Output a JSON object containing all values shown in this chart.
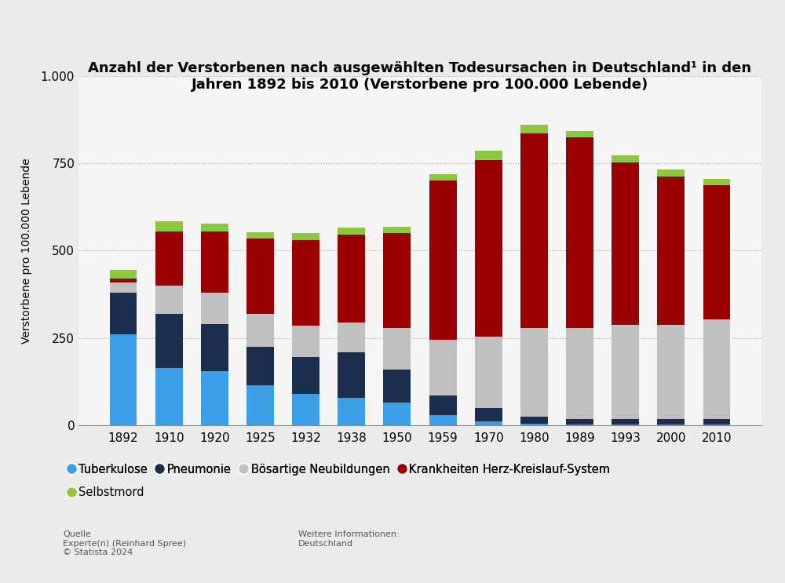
{
  "years": [
    "1892",
    "1910",
    "1920",
    "1925",
    "1932",
    "1938",
    "1950",
    "1959",
    "1970",
    "1980",
    "1989",
    "1993",
    "2000",
    "2010"
  ],
  "tuberkulose": [
    260,
    165,
    155,
    115,
    90,
    80,
    65,
    30,
    12,
    5,
    3,
    3,
    3,
    3
  ],
  "pneumonie": [
    120,
    155,
    135,
    110,
    105,
    130,
    95,
    55,
    38,
    20,
    15,
    15,
    15,
    15
  ],
  "bosartige": [
    30,
    80,
    90,
    95,
    90,
    85,
    120,
    160,
    205,
    255,
    260,
    270,
    270,
    285
  ],
  "herz_kreislauf": [
    10,
    155,
    175,
    215,
    245,
    250,
    270,
    455,
    505,
    555,
    545,
    465,
    425,
    385
  ],
  "selbstmord": [
    25,
    30,
    22,
    18,
    20,
    22,
    18,
    18,
    25,
    25,
    20,
    20,
    20,
    18
  ],
  "colors": {
    "tuberkulose": "#3B9FE7",
    "pneumonie": "#1B2E4E",
    "bosartige": "#C0C0C0",
    "herz_kreislauf": "#990000",
    "selbstmord": "#8DC63F"
  },
  "title_line1": "Anzahl der Verstorbenen nach ausgewählten Todesursachen in Deutschland¹ in den",
  "title_line2": "Jahren 1892 bis 2010 (Verstorbene pro 100.000 Lebende)",
  "ylabel": "Verstorbene pro 100.000 Lebende",
  "ylim": [
    0,
    1000
  ],
  "yticks": [
    0,
    250,
    500,
    750,
    1000
  ],
  "ytick_labels": [
    "0",
    "250",
    "500",
    "750",
    "1.000"
  ],
  "legend_labels": [
    "Tuberkulose",
    "Pneumonie",
    "Bösartige Neubildungen",
    "Krankheiten Herz-Kreislauf-System",
    "Selbstmord"
  ],
  "source_text": "Quelle\nExperte(n) (Reinhard Spree)\n© Statista 2024",
  "info_text": "Weitere Informationen:\nDeutschland",
  "background_color": "#EBEBEB",
  "plot_bg_color": "#F5F5F5"
}
